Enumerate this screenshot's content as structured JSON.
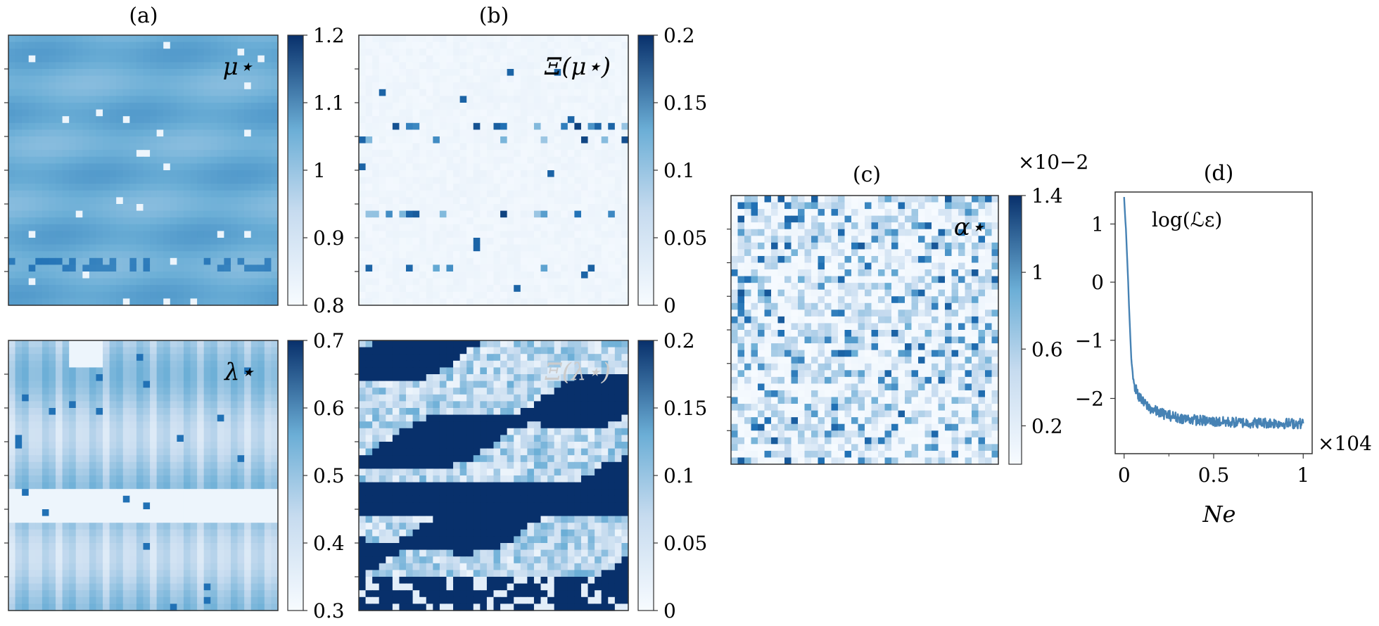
{
  "colormap": {
    "low": "#f7fbff",
    "mid": "#6baed6",
    "high": "#08306b"
  },
  "line_color": "#4682b4",
  "chart_data": [
    {
      "id": "a-top",
      "type": "heatmap",
      "panel_label": "(a)",
      "annotation": "μ⋆",
      "colorbar": {
        "range": [
          0.8,
          1.2
        ],
        "ticks": [
          "0.8",
          "0.9",
          "1",
          "1.1",
          "1.2"
        ]
      },
      "grid": {
        "rows": 40,
        "cols": 40
      },
      "pattern": "smooth layered field near 1.0 with sparse bright and dark cells"
    },
    {
      "id": "b-top",
      "type": "heatmap",
      "panel_label": "(b)",
      "annotation": "Ξ(μ⋆)",
      "colorbar": {
        "range": [
          0,
          0.2
        ],
        "ticks": [
          "0",
          "0.05",
          "0.1",
          "0.15",
          "0.2"
        ]
      },
      "grid": {
        "rows": 40,
        "cols": 40
      },
      "pattern": "mostly near 0 with sparse high cells along layer boundaries"
    },
    {
      "id": "a-bottom",
      "type": "heatmap",
      "annotation": "λ⋆",
      "colorbar": {
        "range": [
          0.3,
          0.7
        ],
        "ticks": [
          "0.3",
          "0.4",
          "0.5",
          "0.6",
          "0.7"
        ]
      },
      "grid": {
        "rows": 40,
        "cols": 40
      },
      "pattern": "vertical striping with layers between 0.3 and 0.5"
    },
    {
      "id": "b-bottom",
      "type": "heatmap",
      "annotation": "Ξ(λ⋆)",
      "colorbar": {
        "range": [
          0,
          0.2
        ],
        "ticks": [
          "0",
          "0.05",
          "0.1",
          "0.15",
          "0.2"
        ]
      },
      "grid": {
        "rows": 40,
        "cols": 40
      },
      "pattern": "large saturated regions at 0.2 interleaved with light bands"
    },
    {
      "id": "c",
      "type": "heatmap",
      "panel_label": "(c)",
      "annotation": "α⋆",
      "colorbar": {
        "range": [
          0,
          1.4
        ],
        "ticks": [
          "0.2",
          "0.6",
          "1",
          "1.4"
        ],
        "scale_label": "×10−2"
      },
      "grid": {
        "rows": 40,
        "cols": 40
      },
      "pattern": "uniform random noise"
    },
    {
      "id": "d",
      "type": "line",
      "panel_label": "(d)",
      "annotation": "log(ℒε)",
      "xlabel": "Ne",
      "x_scale_label": "×104",
      "xlim": [
        -0.05,
        1.05
      ],
      "ylim": [
        -2.95,
        1.55
      ],
      "xticks": [
        0,
        0.5,
        1
      ],
      "xtick_labels": [
        "0",
        "0.5",
        "1"
      ],
      "yticks": [
        1,
        0,
        -1,
        -2
      ],
      "ytick_labels": [
        "1",
        "0",
        "−1",
        "−2"
      ],
      "series": [
        {
          "x": [
            0,
            0.01,
            0.02,
            0.03,
            0.04,
            0.05,
            0.06,
            0.08,
            0.1,
            0.15,
            0.2,
            0.3,
            0.4,
            0.5,
            0.6,
            0.7,
            0.8,
            0.9,
            1.0
          ],
          "y": [
            1.45,
            0.9,
            0.2,
            -0.6,
            -1.3,
            -1.65,
            -1.8,
            -1.95,
            -2.05,
            -2.18,
            -2.25,
            -2.33,
            -2.37,
            -2.4,
            -2.41,
            -2.42,
            -2.42,
            -2.43,
            -2.43
          ]
        }
      ]
    }
  ]
}
